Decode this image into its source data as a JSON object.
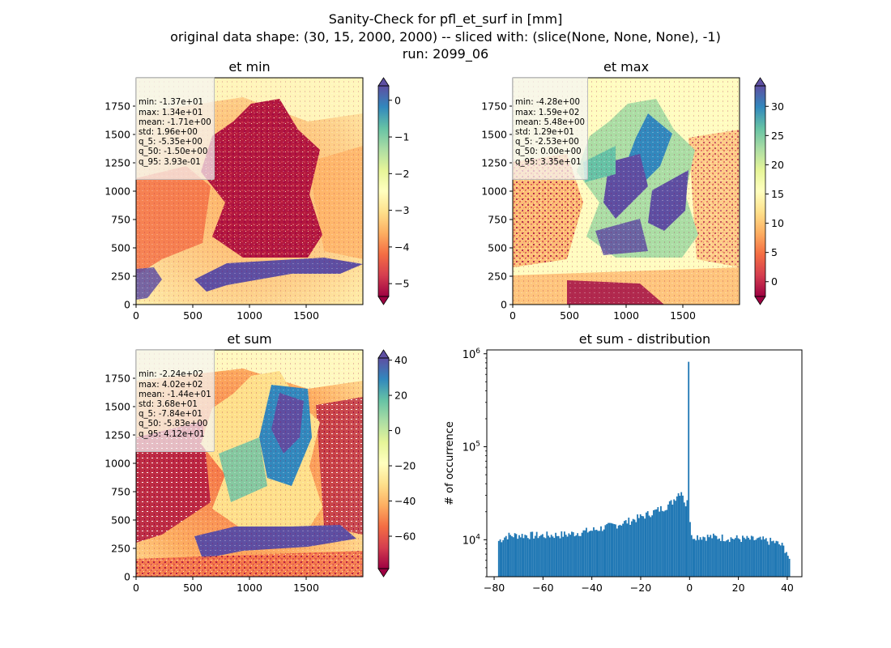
{
  "figure": {
    "suptitle": [
      "Sanity-Check for pfl_et_surf in [mm]",
      "original data shape: (30, 15, 2000, 2000) -- sliced with: (slice(None, None, None), -1)",
      "run: 2099_06"
    ]
  },
  "chart_data": [
    {
      "type": "heatmap",
      "title": "et min",
      "x_ticks": [
        "0",
        "500",
        "1000",
        "1500"
      ],
      "y_ticks": [
        "0",
        "250",
        "500",
        "750",
        "1000",
        "1250",
        "1500",
        "1750"
      ],
      "xlim": [
        0,
        2000
      ],
      "ylim": [
        0,
        2000
      ],
      "colormap": "Spectral",
      "colorbar": {
        "vmin": -5.35,
        "vmax": 0.393,
        "extend": "both",
        "ticks": [
          -5,
          -4,
          -3,
          -2,
          -1,
          0
        ],
        "tick_labels": [
          "−5",
          "−4",
          "−3",
          "−2",
          "−1",
          "0"
        ]
      },
      "stats": [
        "min: -1.37e+01",
        "max: 1.34e+01",
        "mean: -1.71e+00",
        "std: 1.96e+00",
        "q_5: -5.35e+00",
        "q_50: -1.50e+00",
        "q_95: 3.93e-01"
      ]
    },
    {
      "type": "heatmap",
      "title": "et max",
      "x_ticks": [
        "0",
        "500",
        "1000",
        "1500"
      ],
      "y_ticks": [
        "0",
        "250",
        "500",
        "750",
        "1000",
        "1250",
        "1500",
        "1750"
      ],
      "xlim": [
        0,
        2000
      ],
      "ylim": [
        0,
        2000
      ],
      "colormap": "Spectral",
      "colorbar": {
        "vmin": -2.53,
        "vmax": 33.5,
        "extend": "both",
        "ticks": [
          0,
          5,
          10,
          15,
          20,
          25,
          30
        ],
        "tick_labels": [
          "0",
          "5",
          "10",
          "15",
          "20",
          "25",
          "30"
        ]
      },
      "stats": [
        "min: -4.28e+00",
        "max: 1.59e+02",
        "mean: 5.48e+00",
        "std: 1.29e+01",
        "q_5: -2.53e+00",
        "q_50: 0.00e+00",
        "q_95: 3.35e+01"
      ]
    },
    {
      "type": "heatmap",
      "title": "et sum",
      "x_ticks": [
        "0",
        "500",
        "1000",
        "1500"
      ],
      "y_ticks": [
        "0",
        "250",
        "500",
        "750",
        "1000",
        "1250",
        "1500",
        "1750"
      ],
      "xlim": [
        0,
        2000
      ],
      "ylim": [
        0,
        2000
      ],
      "colormap": "Spectral",
      "colorbar": {
        "vmin": -78.4,
        "vmax": 41.2,
        "extend": "both",
        "ticks": [
          -60,
          -40,
          -20,
          0,
          20,
          40
        ],
        "tick_labels": [
          "−60",
          "−40",
          "−20",
          "0",
          "20",
          "40"
        ]
      },
      "stats": [
        "min: -2.24e+02",
        "max: 4.02e+02",
        "mean: -1.44e+01",
        "std: 3.68e+01",
        "q_5: -7.84e+01",
        "q_50: -5.83e+00",
        "q_95: 4.12e+01"
      ]
    },
    {
      "type": "bar",
      "title": "et sum - distribution",
      "xlabel": "",
      "ylabel": "# of occurrence",
      "yscale": "log",
      "xlim": [
        -83,
        46
      ],
      "ylim": [
        4000,
        1100000
      ],
      "x_ticks": [
        -80,
        -60,
        -40,
        -20,
        0,
        20,
        40
      ],
      "x_tick_labels": [
        "−80",
        "−60",
        "−40",
        "−20",
        "0",
        "20",
        "40"
      ],
      "y_ticks": [
        10000,
        100000,
        1000000
      ],
      "y_tick_labels": [
        "10^4",
        "10^5",
        "10^6"
      ],
      "bar_color": "#1f77b4",
      "bins": {
        "start": -78.4,
        "end": 41.2,
        "count": 200
      },
      "profile_x": [
        -78.4,
        -75,
        -70,
        -60,
        -50,
        -40,
        -30,
        -25,
        -20,
        -15,
        -10,
        -7,
        -5,
        -3,
        -2,
        -1,
        -0.6,
        -0.3,
        0,
        0.3,
        0.6,
        1,
        3,
        10,
        20,
        30,
        35,
        38,
        40,
        41.2
      ],
      "profile_y": [
        9600,
        11000,
        11200,
        11100,
        11400,
        12600,
        14500,
        15800,
        17500,
        19800,
        22500,
        25500,
        31000,
        34000,
        25000,
        18000,
        820000,
        820000,
        30000,
        13000,
        11500,
        11000,
        10900,
        10700,
        10300,
        9900,
        9400,
        8600,
        7400,
        5200
      ],
      "peak": {
        "x": 0,
        "y": 820000
      }
    }
  ]
}
